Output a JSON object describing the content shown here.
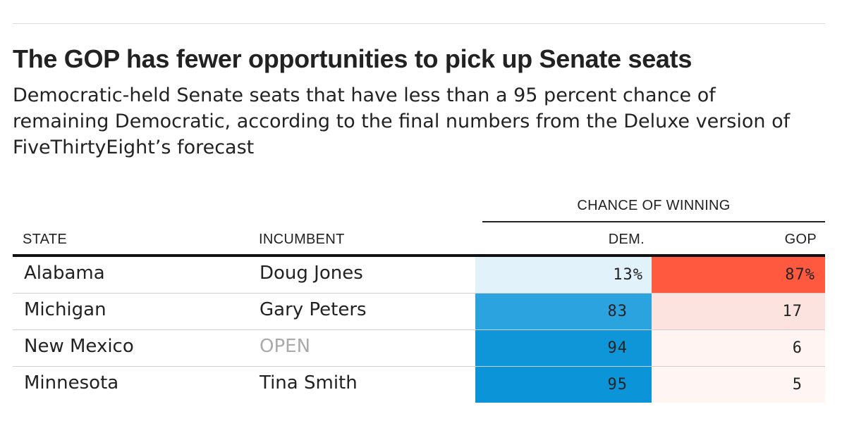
{
  "title": "The GOP has fewer opportunities to pick up Senate seats",
  "subtitle": "Democratic-held Senate seats that have less than a 95 percent chance of remaining Democratic, according to the final numbers from the Deluxe version of FiveThirtyEight’s forecast",
  "chart_data": {
    "type": "table",
    "group_header": "CHANCE OF WINNING",
    "columns": [
      "STATE",
      "INCUMBENT",
      "DEM.",
      "GOP"
    ],
    "rows": [
      {
        "state": "Alabama",
        "incumbent": "Doug Jones",
        "dem": 13,
        "gop": 87,
        "dem_label": "13%",
        "gop_label": "87%",
        "dem_color": "#e2f2fa",
        "gop_color": "#ff5a40",
        "incumbent_open": false
      },
      {
        "state": "Michigan",
        "incumbent": "Gary Peters",
        "dem": 83,
        "gop": 17,
        "dem_label": "83",
        "gop_label": "17",
        "dem_color": "#2ba3de",
        "gop_color": "#fde3df",
        "incumbent_open": false
      },
      {
        "state": "New Mexico",
        "incumbent": "OPEN",
        "dem": 94,
        "gop": 6,
        "dem_label": "94",
        "gop_label": "6",
        "dem_color": "#0e96d8",
        "gop_color": "#fff4f2",
        "incumbent_open": true
      },
      {
        "state": "Minnesota",
        "incumbent": "Tina Smith",
        "dem": 95,
        "gop": 5,
        "dem_label": "95",
        "gop_label": "5",
        "dem_color": "#0b95d8",
        "gop_color": "#fff5f3",
        "incumbent_open": false
      }
    ]
  }
}
